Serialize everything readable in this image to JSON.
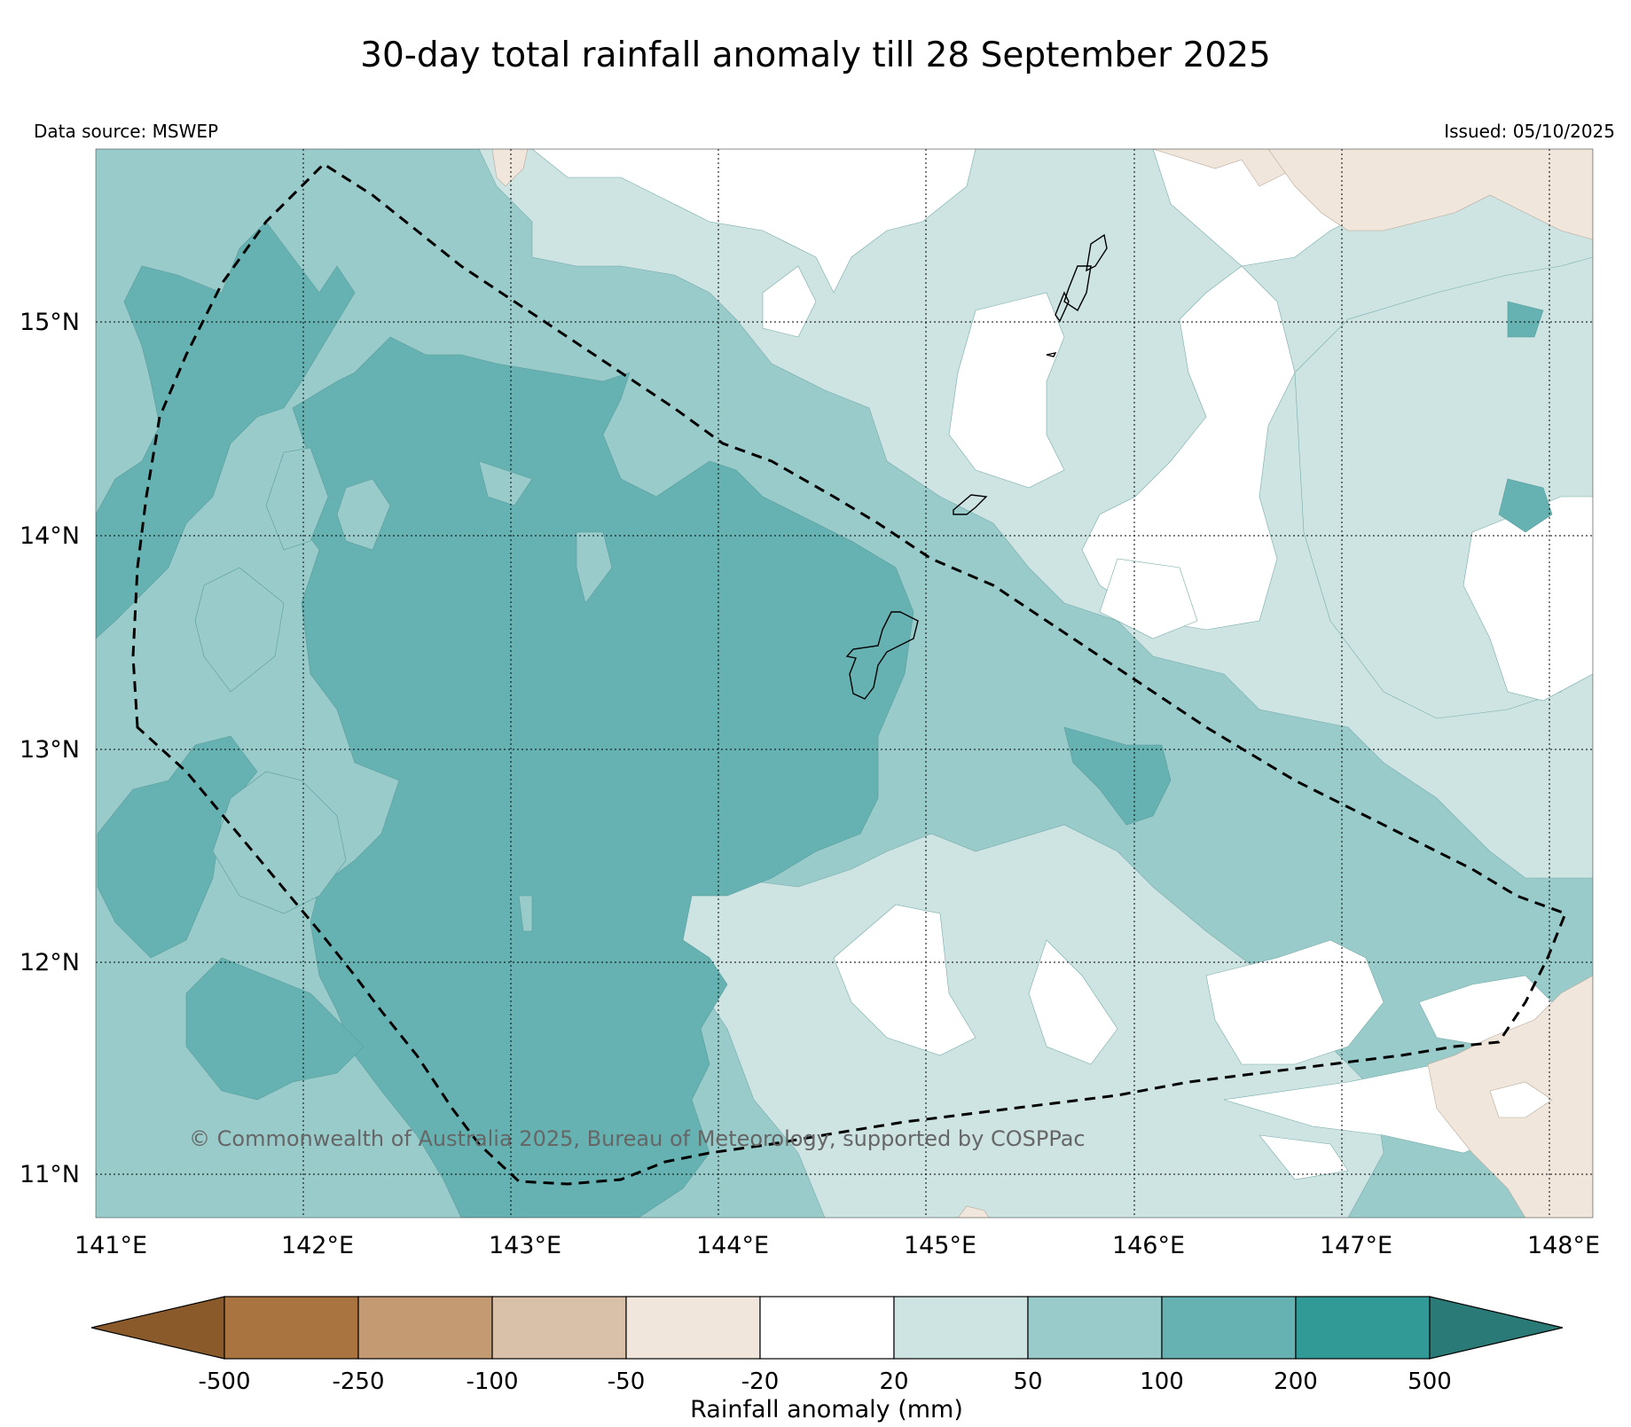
{
  "title": "30-day total rainfall anomaly till 28 September 2025",
  "data_source": "Data source: MSWEP",
  "issued": "Issued: 05/10/2025",
  "copyright": "© Commonwealth of Australia 2025, Bureau of Meteorology, supported by COSPPac",
  "map": {
    "lon_range": [
      141.0,
      148.2
    ],
    "lat_range": [
      10.8,
      15.82
    ],
    "lat_labels": [
      "15°N",
      "14°N",
      "13°N",
      "12°N",
      "11°N"
    ],
    "lon_labels": [
      "141°E",
      "142°E",
      "143°E",
      "144°E",
      "145°E",
      "146°E",
      "147°E",
      "148°E"
    ],
    "islands": [
      "Guam",
      "Rota",
      "Saipan",
      "Tinian",
      "Northern Mariana Islands"
    ]
  },
  "colorbar": {
    "label": "Rainfall anomaly (mm)",
    "ticks": [
      "-500",
      "-250",
      "-100",
      "-50",
      "-20",
      "20",
      "50",
      "100",
      "200",
      "500"
    ],
    "colors": {
      "below_500": "#8B5A2B",
      "m500_m250": "#A9743F",
      "m250_m100": "#C49A72",
      "m100_m50": "#D9C0A9",
      "m50_m20": "#F0E6DC",
      "m20_20": "#FFFFFF",
      "20_50": "#CDE4E3",
      "50_100": "#9ACBCB",
      "100_200": "#66B2B2",
      "200_500": "#319A96",
      "above_500": "#2A7B77"
    }
  }
}
